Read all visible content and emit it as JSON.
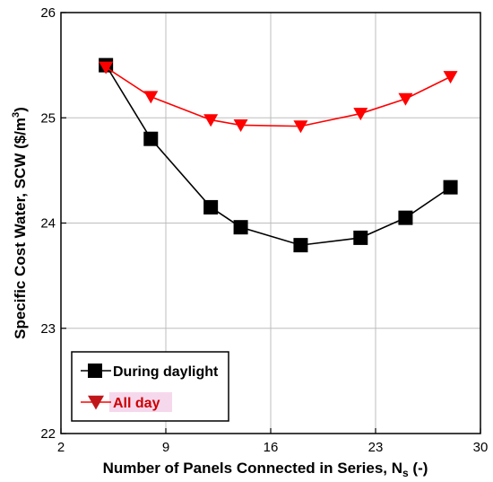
{
  "chart_data": {
    "type": "line",
    "title": "",
    "xlabel": {
      "main": "Number of Panels Connected in Series, N",
      "subscript": "s",
      "suffix": " (-)"
    },
    "ylabel": {
      "main": "Specific Cost Water, SCW ($/m",
      "superscript": "3",
      "suffix": ")"
    },
    "xlim": [
      2,
      30
    ],
    "ylim": [
      22,
      26
    ],
    "xticks": [
      2,
      9,
      16,
      23,
      30
    ],
    "yticks": [
      22,
      23,
      24,
      25,
      26
    ],
    "grid": true,
    "legend_position": "bottom-left",
    "series": [
      {
        "name": "During daylight",
        "color": "#000000",
        "marker": "square",
        "x": [
          5,
          8,
          12,
          14,
          18,
          22,
          25,
          28
        ],
        "y": [
          25.5,
          24.8,
          24.15,
          23.96,
          23.79,
          23.86,
          24.05,
          24.34
        ]
      },
      {
        "name": "All day",
        "color": "#ff0000",
        "text_color": "#cc0000",
        "marker_color": "#c0161a",
        "marker": "triangle-down",
        "x": [
          5,
          8,
          12,
          14,
          18,
          22,
          25,
          28
        ],
        "y": [
          25.48,
          25.2,
          24.98,
          24.93,
          24.92,
          25.04,
          25.18,
          25.39
        ]
      }
    ]
  }
}
